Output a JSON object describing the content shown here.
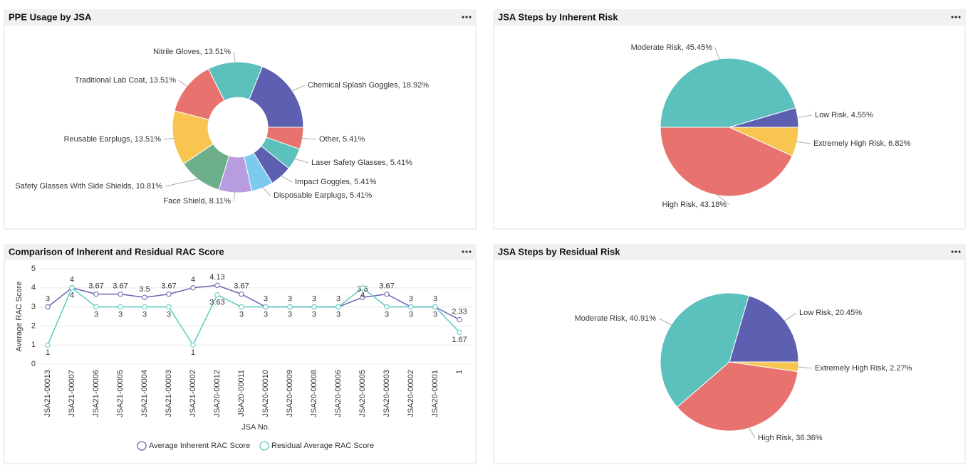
{
  "chart_data": [
    {
      "type": "donut",
      "title": "PPE Usage by JSA",
      "categories": [
        "Chemical Splash Goggles",
        "Other",
        "Laser Safety Glasses",
        "Impact Goggles",
        "Disposable Earplugs",
        "Face Shield",
        "Safety Glasses With Side Shields",
        "Reusable Earplugs",
        "Traditional Lab Coat",
        "Nitrile Gloves"
      ],
      "values": [
        18.92,
        5.41,
        5.41,
        5.41,
        5.41,
        8.11,
        10.81,
        13.51,
        13.51,
        13.51
      ],
      "value_labels": [
        "18.92%",
        "5.41%",
        "5.41%",
        "5.41%",
        "5.41%",
        "8.11%",
        "10.81%",
        "13.51%",
        "13.51%",
        "13.51%"
      ],
      "colors": [
        "#5d5fb1",
        "#e8736e",
        "#5cc1bd",
        "#5d5fb1",
        "#7ccaee",
        "#b79ce0",
        "#6dae8b",
        "#f7c550",
        "#e8736e",
        "#5cc1bd"
      ]
    },
    {
      "type": "pie",
      "title": "JSA Steps by Inherent Risk",
      "categories": [
        "Extremely High Risk",
        "High Risk",
        "Moderate Risk",
        "Low Risk"
      ],
      "values": [
        6.82,
        43.18,
        45.45,
        4.55
      ],
      "value_labels": [
        "6.82%",
        "43.18%",
        "45.45%",
        "4.55%"
      ],
      "colors": [
        "#f7c550",
        "#e8736e",
        "#5cc1bd",
        "#5d5fb1"
      ]
    },
    {
      "type": "line",
      "title": "Comparison of Inherent and Residual RAC Score",
      "categories": [
        "JSA21-00013",
        "JSA21-00007",
        "JSA21-00006",
        "JSA21-00005",
        "JSA21-00004",
        "JSA21-00003",
        "JSA21-00002",
        "JSA20-00012",
        "JSA20-00011",
        "JSA20-00010",
        "JSA20-00009",
        "JSA20-00008",
        "JSA20-00006",
        "JSA20-00005",
        "JSA20-00003",
        "JSA20-00002",
        "JSA20-00001",
        "1"
      ],
      "series": [
        {
          "name": "Average Inherent RAC Score",
          "color": "#6b63b1",
          "values": [
            3,
            4,
            3.67,
            3.67,
            3.5,
            3.67,
            4,
            4.13,
            3.67,
            3,
            3,
            3,
            3,
            3.5,
            3.67,
            3,
            3,
            2.33
          ]
        },
        {
          "name": "Residual Average RAC Score",
          "color": "#5ccac1",
          "values": [
            1,
            4,
            3,
            3,
            3,
            3,
            1,
            3.63,
            3,
            3,
            3,
            3,
            3,
            4,
            3,
            3,
            3,
            1.67
          ]
        }
      ],
      "ylim": [
        0,
        5
      ],
      "yticks": [
        0,
        1,
        2,
        3,
        4,
        5
      ],
      "grid": true,
      "ylabel": "Average RAC Score",
      "xlabel": "JSA No."
    },
    {
      "type": "pie",
      "title": "JSA Steps by Residual Risk",
      "categories": [
        "Extremely High Risk",
        "High Risk",
        "Moderate Risk",
        "Low Risk"
      ],
      "values": [
        2.27,
        36.36,
        40.91,
        20.45
      ],
      "value_labels": [
        "2.27%",
        "36.36%",
        "40.91%",
        "20.45%"
      ],
      "colors": [
        "#f7c550",
        "#e8736e",
        "#5cc1bd",
        "#5d5fb1"
      ]
    }
  ]
}
